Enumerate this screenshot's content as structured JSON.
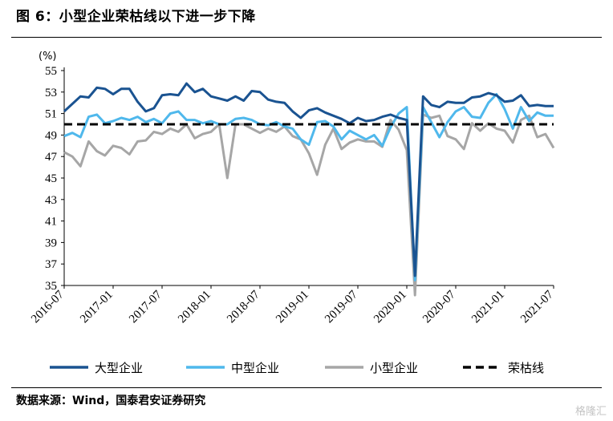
{
  "header": {
    "title": "图 6：小型企业荣枯线以下进一步下降"
  },
  "footer": {
    "source": "数据来源：Wind，国泰君安证券研究",
    "watermark": "格隆汇"
  },
  "colors": {
    "large": "#1a5391",
    "medium": "#4fb8ec",
    "small": "#a6a6a6",
    "threshold": "#000000"
  },
  "chart_data": {
    "type": "line",
    "title": "",
    "xlabel": "",
    "ylabel": "(%)",
    "ylim": [
      35,
      55
    ],
    "yticks": [
      35,
      37,
      39,
      41,
      43,
      45,
      47,
      49,
      51,
      53,
      55
    ],
    "xticks": [
      "2016-07",
      "2017-01",
      "2017-07",
      "2018-01",
      "2018-07",
      "2019-01",
      "2019-07",
      "2020-01",
      "2020-07",
      "2021-01",
      "2021-07"
    ],
    "grid": false,
    "legend_position": "bottom",
    "x": [
      "2016-07",
      "2016-08",
      "2016-09",
      "2016-10",
      "2016-11",
      "2016-12",
      "2017-01",
      "2017-02",
      "2017-03",
      "2017-04",
      "2017-05",
      "2017-06",
      "2017-07",
      "2017-08",
      "2017-09",
      "2017-10",
      "2017-11",
      "2017-12",
      "2018-01",
      "2018-02",
      "2018-03",
      "2018-04",
      "2018-05",
      "2018-06",
      "2018-07",
      "2018-08",
      "2018-09",
      "2018-10",
      "2018-11",
      "2018-12",
      "2019-01",
      "2019-02",
      "2019-03",
      "2019-04",
      "2019-05",
      "2019-06",
      "2019-07",
      "2019-08",
      "2019-09",
      "2019-10",
      "2019-11",
      "2019-12",
      "2020-01",
      "2020-02",
      "2020-03",
      "2020-04",
      "2020-05",
      "2020-06",
      "2020-07",
      "2020-08",
      "2020-09",
      "2020-10",
      "2020-11",
      "2020-12",
      "2021-01",
      "2021-02",
      "2021-03",
      "2021-04",
      "2021-05",
      "2021-06",
      "2021-07"
    ],
    "series": [
      {
        "name": "大型企业",
        "key": "large",
        "values": [
          51.2,
          51.9,
          52.6,
          52.5,
          53.4,
          53.3,
          52.8,
          53.3,
          53.3,
          52.1,
          51.2,
          51.5,
          52.7,
          52.8,
          52.7,
          53.8,
          53.0,
          53.3,
          52.6,
          52.4,
          52.2,
          52.6,
          52.2,
          53.1,
          53.0,
          52.3,
          52.1,
          52.0,
          51.2,
          50.6,
          51.3,
          51.5,
          51.1,
          50.8,
          50.5,
          50.1,
          50.6,
          50.3,
          50.4,
          50.7,
          50.9,
          50.6,
          50.4,
          35.9,
          52.6,
          51.8,
          51.6,
          52.1,
          52.0,
          52.0,
          52.5,
          52.6,
          52.9,
          52.7,
          52.1,
          52.2,
          52.7,
          51.7,
          51.8,
          51.7,
          51.7
        ]
      },
      {
        "name": "中型企业",
        "key": "medium",
        "values": [
          48.9,
          49.2,
          48.8,
          50.7,
          50.9,
          50.1,
          50.3,
          50.6,
          50.4,
          50.7,
          50.2,
          50.5,
          50.1,
          51.0,
          51.2,
          50.4,
          50.4,
          50.1,
          50.3,
          50.0,
          50.0,
          50.5,
          50.6,
          50.4,
          50.0,
          49.9,
          50.2,
          49.8,
          49.6,
          48.6,
          48.1,
          50.2,
          50.3,
          49.8,
          48.6,
          49.4,
          49.0,
          48.6,
          49.0,
          48.0,
          49.7,
          51.0,
          51.6,
          35.5,
          51.6,
          50.2,
          48.8,
          50.2,
          51.2,
          51.6,
          50.7,
          50.6,
          52.0,
          52.8,
          51.4,
          49.6,
          51.6,
          50.3,
          51.1,
          50.8,
          50.8
        ]
      },
      {
        "name": "小型企业",
        "key": "small",
        "values": [
          47.4,
          47.0,
          46.1,
          48.4,
          47.5,
          47.1,
          48.0,
          47.8,
          47.2,
          48.4,
          48.5,
          49.3,
          49.1,
          49.6,
          49.3,
          50.0,
          48.7,
          49.1,
          49.3,
          50.0,
          45.0,
          50.0,
          50.0,
          49.6,
          49.2,
          49.6,
          49.3,
          49.8,
          48.9,
          48.6,
          47.3,
          45.3,
          48.1,
          49.6,
          47.7,
          48.3,
          48.6,
          48.4,
          48.4,
          47.9,
          50.4,
          49.5,
          47.6,
          34.1,
          50.9,
          50.6,
          50.8,
          48.9,
          48.6,
          47.7,
          50.1,
          49.4,
          50.1,
          49.6,
          49.4,
          48.3,
          50.4,
          50.8,
          48.8,
          49.1,
          47.8
        ]
      },
      {
        "name": "荣枯线",
        "key": "threshold",
        "dashed": true,
        "values": [
          50,
          50,
          50,
          50,
          50,
          50,
          50,
          50,
          50,
          50,
          50,
          50,
          50,
          50,
          50,
          50,
          50,
          50,
          50,
          50,
          50,
          50,
          50,
          50,
          50,
          50,
          50,
          50,
          50,
          50,
          50,
          50,
          50,
          50,
          50,
          50,
          50,
          50,
          50,
          50,
          50,
          50,
          50,
          50,
          50,
          50,
          50,
          50,
          50,
          50,
          50,
          50,
          50,
          50,
          50,
          50,
          50,
          50,
          50,
          50,
          50
        ]
      }
    ]
  }
}
